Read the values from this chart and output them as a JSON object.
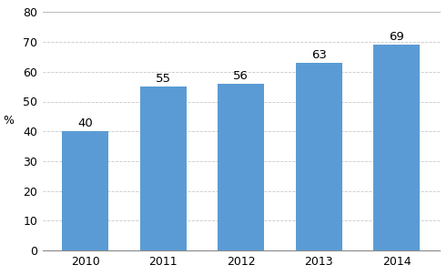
{
  "categories": [
    "2010",
    "2011",
    "2012",
    "2013",
    "2014"
  ],
  "values": [
    40,
    55,
    56,
    63,
    69
  ],
  "bar_color": "#5B9BD5",
  "ylabel": "%",
  "ylim": [
    0,
    80
  ],
  "yticks": [
    0,
    10,
    20,
    30,
    40,
    50,
    60,
    70,
    80
  ],
  "label_fontsize": 9.5,
  "tick_fontsize": 9,
  "ylabel_fontsize": 9,
  "background_color": "#ffffff",
  "grid_color": "#c8c8c8",
  "bar_width": 0.6,
  "top_line_color": "#c0c0c0",
  "bottom_line_color": "#888888"
}
